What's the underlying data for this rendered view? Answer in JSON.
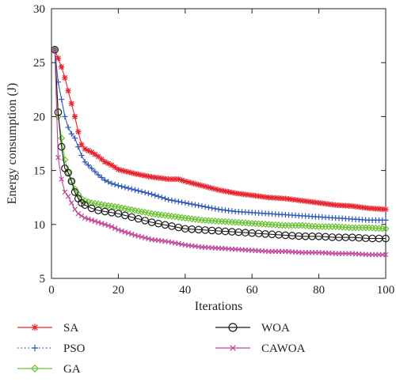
{
  "chart_data": {
    "type": "line",
    "title": "",
    "xlabel": "Iterations",
    "ylabel": "Energy consumption (J)",
    "xlim": [
      0,
      100
    ],
    "ylim": [
      5,
      30
    ],
    "x_ticks": [
      "0",
      "20",
      "40",
      "60",
      "80",
      "100"
    ],
    "y_ticks": [
      "5",
      "10",
      "15",
      "20",
      "25",
      "30"
    ],
    "x_tick_values": [
      0,
      20,
      40,
      60,
      80,
      100
    ],
    "y_tick_values": [
      5,
      10,
      15,
      20,
      25,
      30
    ],
    "grid": false,
    "legend_position": "bottom",
    "series": [
      {
        "name": "SA",
        "color": "#e8232f",
        "marker": "star",
        "points": [
          [
            1,
            26.2
          ],
          [
            2,
            25.4
          ],
          [
            3,
            24.6
          ],
          [
            4,
            23.6
          ],
          [
            5,
            22.4
          ],
          [
            6,
            21.2
          ],
          [
            7,
            20.0
          ],
          [
            8,
            18.6
          ],
          [
            9,
            17.4
          ],
          [
            10,
            17.0
          ],
          [
            12,
            16.7
          ],
          [
            14,
            16.3
          ],
          [
            16,
            15.8
          ],
          [
            18,
            15.5
          ],
          [
            20,
            15.1
          ],
          [
            25,
            14.7
          ],
          [
            30,
            14.4
          ],
          [
            35,
            14.2
          ],
          [
            38,
            14.2
          ],
          [
            40,
            14.0
          ],
          [
            45,
            13.6
          ],
          [
            50,
            13.2
          ],
          [
            55,
            12.9
          ],
          [
            60,
            12.7
          ],
          [
            65,
            12.5
          ],
          [
            70,
            12.4
          ],
          [
            75,
            12.2
          ],
          [
            80,
            12.0
          ],
          [
            85,
            11.8
          ],
          [
            90,
            11.7
          ],
          [
            95,
            11.5
          ],
          [
            100,
            11.4
          ]
        ]
      },
      {
        "name": "PSO",
        "color": "#2f58b8",
        "marker": "plus",
        "points": [
          [
            1,
            26.2
          ],
          [
            2,
            23.2
          ],
          [
            3,
            21.6
          ],
          [
            4,
            20.0
          ],
          [
            5,
            19.0
          ],
          [
            6,
            18.4
          ],
          [
            7,
            18.0
          ],
          [
            8,
            17.2
          ],
          [
            9,
            16.4
          ],
          [
            10,
            15.8
          ],
          [
            12,
            15.2
          ],
          [
            14,
            14.6
          ],
          [
            16,
            14.1
          ],
          [
            18,
            13.8
          ],
          [
            20,
            13.6
          ],
          [
            25,
            13.2
          ],
          [
            30,
            12.8
          ],
          [
            35,
            12.3
          ],
          [
            40,
            12.0
          ],
          [
            45,
            11.7
          ],
          [
            50,
            11.4
          ],
          [
            55,
            11.2
          ],
          [
            60,
            11.1
          ],
          [
            65,
            11.0
          ],
          [
            70,
            10.9
          ],
          [
            75,
            10.8
          ],
          [
            80,
            10.7
          ],
          [
            85,
            10.6
          ],
          [
            90,
            10.5
          ],
          [
            95,
            10.4
          ],
          [
            100,
            10.4
          ]
        ]
      },
      {
        "name": "GA",
        "color": "#6cc235",
        "marker": "diamond",
        "points": [
          [
            1,
            26.2
          ],
          [
            2,
            20.0
          ],
          [
            3,
            18.0
          ],
          [
            4,
            16.0
          ],
          [
            5,
            14.8
          ],
          [
            6,
            14.0
          ],
          [
            7,
            13.3
          ],
          [
            8,
            12.8
          ],
          [
            9,
            12.4
          ],
          [
            10,
            12.2
          ],
          [
            12,
            12.0
          ],
          [
            14,
            11.9
          ],
          [
            16,
            11.8
          ],
          [
            18,
            11.7
          ],
          [
            20,
            11.6
          ],
          [
            25,
            11.3
          ],
          [
            30,
            11.0
          ],
          [
            35,
            10.8
          ],
          [
            40,
            10.6
          ],
          [
            45,
            10.4
          ],
          [
            50,
            10.3
          ],
          [
            55,
            10.2
          ],
          [
            60,
            10.1
          ],
          [
            65,
            10.0
          ],
          [
            70,
            9.9
          ],
          [
            75,
            9.9
          ],
          [
            80,
            9.8
          ],
          [
            85,
            9.8
          ],
          [
            90,
            9.7
          ],
          [
            95,
            9.7
          ],
          [
            100,
            9.6
          ]
        ]
      },
      {
        "name": "WOA",
        "color": "#1a1a1a",
        "marker": "circle",
        "points": [
          [
            1,
            26.2
          ],
          [
            2,
            20.4
          ],
          [
            3,
            17.2
          ],
          [
            4,
            15.2
          ],
          [
            5,
            14.8
          ],
          [
            6,
            14.0
          ],
          [
            7,
            13.0
          ],
          [
            8,
            12.4
          ],
          [
            9,
            12.0
          ],
          [
            10,
            11.8
          ],
          [
            12,
            11.5
          ],
          [
            14,
            11.3
          ],
          [
            16,
            11.2
          ],
          [
            18,
            11.1
          ],
          [
            20,
            11.0
          ],
          [
            25,
            10.6
          ],
          [
            30,
            10.2
          ],
          [
            35,
            9.9
          ],
          [
            40,
            9.6
          ],
          [
            45,
            9.5
          ],
          [
            50,
            9.4
          ],
          [
            55,
            9.3
          ],
          [
            60,
            9.2
          ],
          [
            65,
            9.1
          ],
          [
            70,
            9.0
          ],
          [
            75,
            8.9
          ],
          [
            80,
            8.9
          ],
          [
            85,
            8.8
          ],
          [
            90,
            8.8
          ],
          [
            95,
            8.7
          ],
          [
            100,
            8.7
          ]
        ]
      },
      {
        "name": "CAWOA",
        "color": "#c0469a",
        "marker": "x",
        "points": [
          [
            1,
            26.2
          ],
          [
            2,
            16.2
          ],
          [
            3,
            14.2
          ],
          [
            4,
            13.0
          ],
          [
            5,
            12.6
          ],
          [
            6,
            12.0
          ],
          [
            7,
            11.4
          ],
          [
            8,
            11.0
          ],
          [
            9,
            10.8
          ],
          [
            10,
            10.6
          ],
          [
            12,
            10.4
          ],
          [
            14,
            10.2
          ],
          [
            16,
            10.0
          ],
          [
            18,
            9.8
          ],
          [
            20,
            9.5
          ],
          [
            25,
            9.0
          ],
          [
            30,
            8.6
          ],
          [
            35,
            8.4
          ],
          [
            40,
            8.1
          ],
          [
            45,
            7.9
          ],
          [
            50,
            7.8
          ],
          [
            55,
            7.7
          ],
          [
            60,
            7.6
          ],
          [
            65,
            7.5
          ],
          [
            70,
            7.5
          ],
          [
            75,
            7.4
          ],
          [
            80,
            7.4
          ],
          [
            85,
            7.3
          ],
          [
            90,
            7.3
          ],
          [
            95,
            7.2
          ],
          [
            100,
            7.2
          ]
        ]
      }
    ]
  }
}
